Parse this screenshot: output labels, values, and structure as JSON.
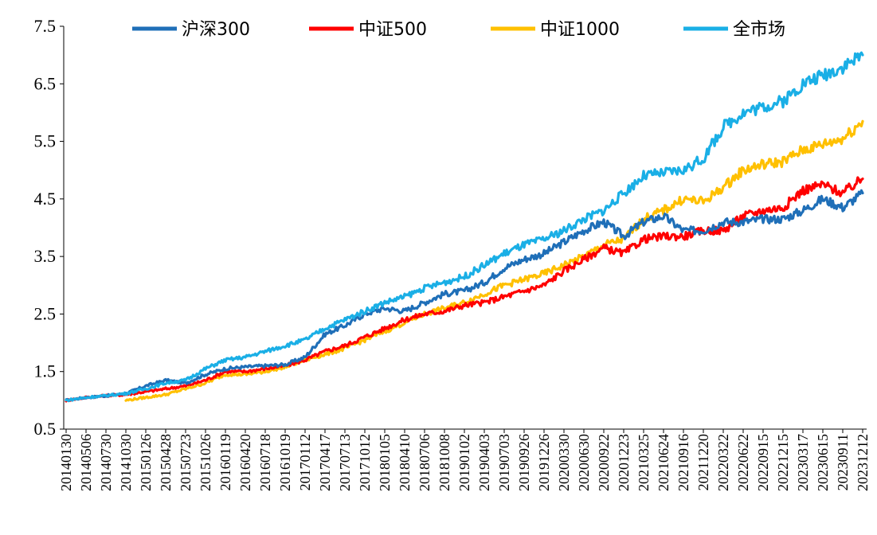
{
  "chart_data": {
    "type": "line",
    "title": "",
    "xlabel": "",
    "ylabel": "",
    "ylim": [
      0.5,
      7.5
    ],
    "yticks": [
      "0.5",
      "1.5",
      "2.5",
      "3.5",
      "4.5",
      "5.5",
      "6.5",
      "7.5"
    ],
    "grid": false,
    "legend_position": "top",
    "x": [
      "20140130",
      "20140506",
      "20140730",
      "20141030",
      "20150126",
      "20150428",
      "20150723",
      "20151026",
      "20160119",
      "20160420",
      "20160718",
      "20161019",
      "20170112",
      "20170417",
      "20170713",
      "20171012",
      "20180105",
      "20180410",
      "20180706",
      "20181008",
      "20190102",
      "20190403",
      "20190703",
      "20190926",
      "20191226",
      "20200330",
      "20200630",
      "20200922",
      "20201223",
      "20210325",
      "20210624",
      "20210916",
      "20211220",
      "20220322",
      "20220622",
      "20220915",
      "20221215",
      "20230317",
      "20230615",
      "20230911",
      "20231212"
    ],
    "series": [
      {
        "name": "沪深300",
        "color": "#1F6FB8",
        "values": [
          1.0,
          1.05,
          1.08,
          1.12,
          1.25,
          1.35,
          1.3,
          1.45,
          1.55,
          1.58,
          1.6,
          1.62,
          1.75,
          2.15,
          2.3,
          2.5,
          2.6,
          2.55,
          2.7,
          2.85,
          2.9,
          3.05,
          3.3,
          3.45,
          3.55,
          3.75,
          3.95,
          4.1,
          3.85,
          4.1,
          4.2,
          3.95,
          3.95,
          4.1,
          4.1,
          4.15,
          4.15,
          4.3,
          4.5,
          4.35,
          4.6
        ]
      },
      {
        "name": "中证500",
        "color": "#FF0000",
        "values": [
          1.0,
          1.05,
          1.08,
          1.1,
          1.15,
          1.2,
          1.25,
          1.35,
          1.5,
          1.5,
          1.55,
          1.6,
          1.7,
          1.85,
          1.95,
          2.1,
          2.25,
          2.4,
          2.5,
          2.55,
          2.65,
          2.7,
          2.8,
          2.9,
          3.0,
          3.25,
          3.45,
          3.65,
          3.55,
          3.8,
          3.85,
          3.85,
          3.95,
          3.95,
          4.2,
          4.3,
          4.35,
          4.65,
          4.75,
          4.6,
          4.85
        ]
      },
      {
        "name": "中证1000",
        "color": "#FFC000",
        "values": [
          null,
          null,
          null,
          1.0,
          1.05,
          1.1,
          1.2,
          1.3,
          1.45,
          1.45,
          1.5,
          1.58,
          1.7,
          1.8,
          1.9,
          2.05,
          2.2,
          2.35,
          2.5,
          2.6,
          2.7,
          2.85,
          3.0,
          3.1,
          3.2,
          3.35,
          3.5,
          3.7,
          3.8,
          4.15,
          4.3,
          4.5,
          4.45,
          4.7,
          5.0,
          5.1,
          5.15,
          5.35,
          5.45,
          5.55,
          5.85
        ]
      },
      {
        "name": "全市场",
        "color": "#1AAFE6",
        "values": [
          1.0,
          1.05,
          1.08,
          1.12,
          1.2,
          1.3,
          1.35,
          1.55,
          1.7,
          1.75,
          1.85,
          1.95,
          2.05,
          2.25,
          2.4,
          2.55,
          2.7,
          2.8,
          2.95,
          3.05,
          3.15,
          3.35,
          3.55,
          3.7,
          3.8,
          3.95,
          4.15,
          4.3,
          4.6,
          4.9,
          4.95,
          5.0,
          5.2,
          5.75,
          6.0,
          6.1,
          6.2,
          6.5,
          6.65,
          6.8,
          7.0
        ]
      }
    ]
  }
}
